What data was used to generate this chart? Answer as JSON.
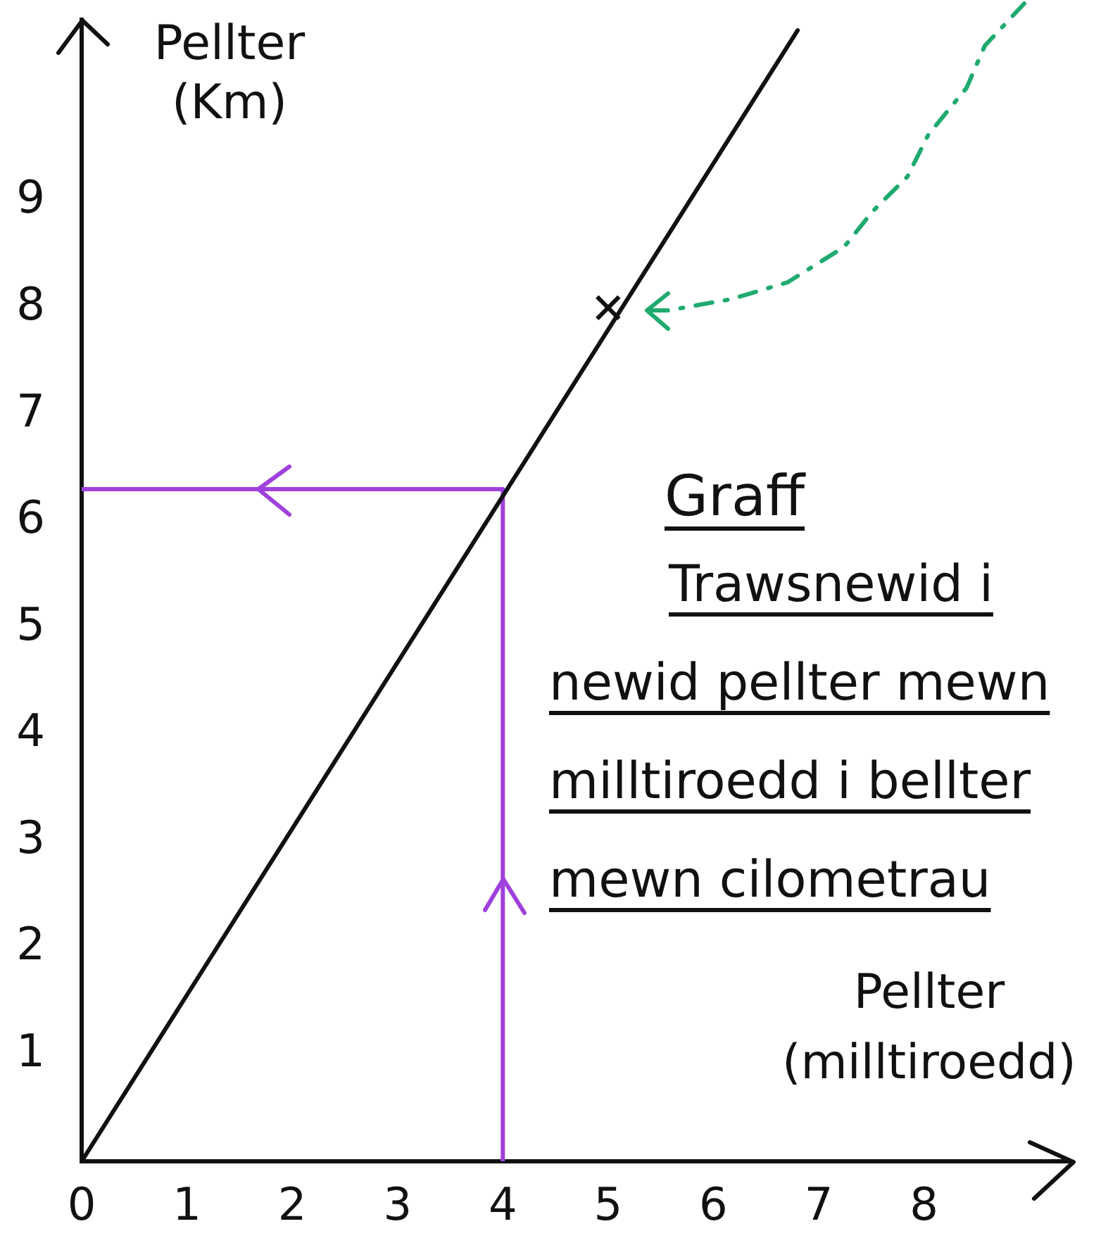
{
  "chart_data": {
    "type": "line",
    "title": "Graff",
    "subtitle": "Trawsnewid i newid pellter mewn milltiroedd i bellter mewn cilometrau",
    "xlabel": "Pellter (milltiroedd)",
    "ylabel": "Pellter (Km)",
    "series": [
      {
        "color": "#111111",
        "x": [
          0,
          6.8
        ],
        "values": [
          0,
          10.6
        ],
        "marker": "none"
      },
      {
        "color": "#a040dd",
        "x": [
          4,
          4,
          0
        ],
        "values": [
          0,
          6.3,
          6.3
        ],
        "marker": "none"
      },
      {
        "type": "scatter",
        "color": "#111111",
        "x": [
          5
        ],
        "values": [
          8
        ],
        "marker": "cross"
      }
    ],
    "xlim": [
      0,
      9.4
    ],
    "ylim": [
      0,
      10.7
    ],
    "xticks": [
      0,
      1,
      2,
      3,
      4,
      5,
      6,
      7,
      8
    ],
    "yticks": [
      1,
      2,
      3,
      4,
      5,
      6,
      7,
      8,
      9
    ],
    "grid": false
  }
}
